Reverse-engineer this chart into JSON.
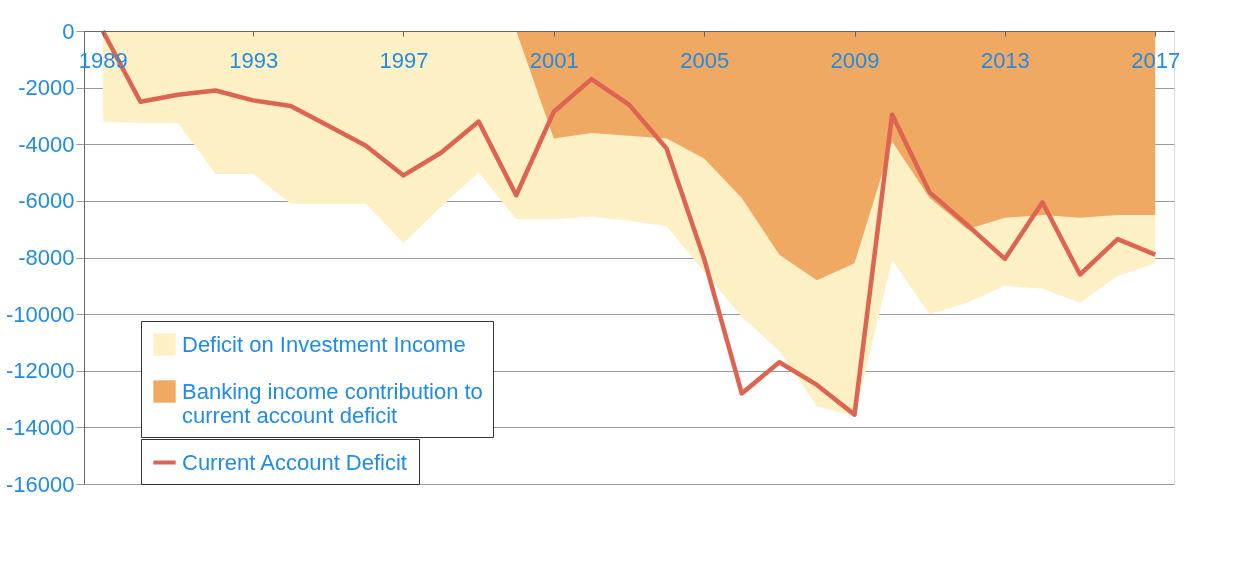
{
  "chart_data": {
    "type": "area",
    "categories": [
      "1989",
      null,
      null,
      null,
      "1993",
      null,
      null,
      null,
      "1997",
      null,
      null,
      null,
      "2001",
      null,
      null,
      null,
      "2005",
      null,
      null,
      null,
      "2009",
      null,
      null,
      null,
      "2013",
      null,
      null,
      null,
      "2017"
    ],
    "series": [
      {
        "name": "Deficit on Investment Income",
        "color": "#fdf0c4",
        "values": [
          -3200,
          -3250,
          -3250,
          -5050,
          -5050,
          -6100,
          -6100,
          -6100,
          -7500,
          -6200,
          -5000,
          -6650,
          -6650,
          -6550,
          -6700,
          -6900,
          -8500,
          -10100,
          -11300,
          -13250,
          -13600,
          -8100,
          -10000,
          -9600,
          -9000,
          -9100,
          -9600,
          -8650,
          -8200
        ]
      },
      {
        "name": "Banking income contribution to current account deficit",
        "color": "#f0a962",
        "values": [
          null,
          null,
          null,
          null,
          null,
          null,
          null,
          null,
          null,
          null,
          null,
          0,
          -3800,
          -3600,
          -3700,
          -3800,
          -4500,
          -5900,
          -7900,
          -8800,
          -8200,
          -3900,
          -5900,
          -7000,
          -6600,
          -6500,
          -6600,
          -6500,
          -6500
        ]
      },
      {
        "name": "Current Account Deficit",
        "type": "line",
        "color": "#dc6450",
        "values": [
          0,
          -2500,
          -2250,
          -2100,
          -2450,
          -2650,
          -3350,
          -4050,
          -5100,
          -4300,
          -3200,
          -5800,
          -2850,
          -1700,
          -2600,
          -4150,
          -8050,
          -12800,
          -11700,
          -12500,
          -13550,
          -2950,
          -5700,
          -6850,
          -8050,
          -6050,
          -8600,
          -7350,
          -7900
        ]
      }
    ],
    "ylim": [
      -16000,
      0
    ],
    "yticks": [
      0,
      -2000,
      -4000,
      -6000,
      -8000,
      -10000,
      -12000,
      -14000,
      -16000
    ],
    "grid": "y",
    "legend": "bottom left"
  }
}
